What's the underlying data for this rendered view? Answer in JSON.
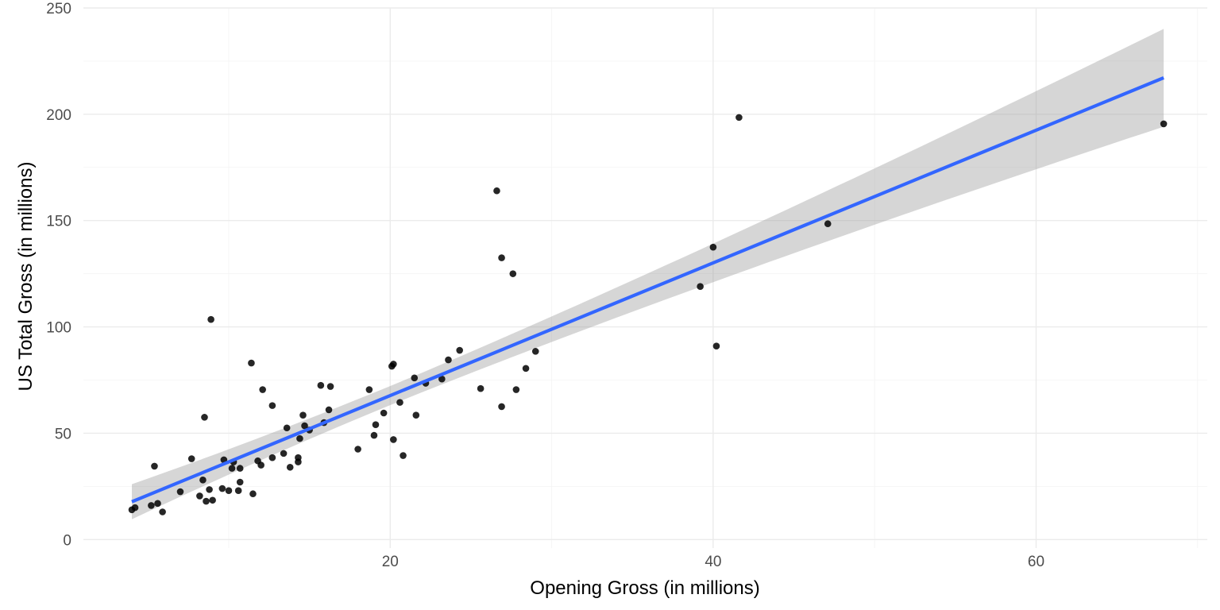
{
  "chart_data": {
    "type": "scatter",
    "xlabel": "Opening Gross (in millions)",
    "ylabel": "US Total Gross (in millions)",
    "xlim": [
      1.0,
      70.6
    ],
    "ylim": [
      -4,
      250
    ],
    "x_ticks": [
      20,
      40,
      60
    ],
    "x_tick_labels": [
      "20",
      "40",
      "60"
    ],
    "y_ticks": [
      0,
      50,
      100,
      150,
      200,
      250
    ],
    "y_tick_labels": [
      "0",
      "50",
      "100",
      "150",
      "200",
      "250"
    ],
    "grid": true,
    "legend": "none",
    "colors": {
      "points": "#000000",
      "fit_line": "#3366ff",
      "confidence_band": "#999999"
    },
    "points": [
      {
        "x": 4.0,
        "y": 14
      },
      {
        "x": 4.2,
        "y": 15
      },
      {
        "x": 5.2,
        "y": 16
      },
      {
        "x": 5.4,
        "y": 34.5
      },
      {
        "x": 5.6,
        "y": 17
      },
      {
        "x": 5.9,
        "y": 13
      },
      {
        "x": 7.0,
        "y": 22.5
      },
      {
        "x": 7.7,
        "y": 38
      },
      {
        "x": 8.2,
        "y": 20.5
      },
      {
        "x": 8.4,
        "y": 28
      },
      {
        "x": 8.5,
        "y": 57.5
      },
      {
        "x": 8.6,
        "y": 18
      },
      {
        "x": 8.8,
        "y": 23.5
      },
      {
        "x": 8.9,
        "y": 103.5
      },
      {
        "x": 9.0,
        "y": 18.5
      },
      {
        "x": 9.6,
        "y": 24
      },
      {
        "x": 9.7,
        "y": 37.5
      },
      {
        "x": 10.0,
        "y": 23
      },
      {
        "x": 10.2,
        "y": 33.5
      },
      {
        "x": 10.3,
        "y": 36.5
      },
      {
        "x": 10.6,
        "y": 23
      },
      {
        "x": 10.7,
        "y": 33.5
      },
      {
        "x": 10.7,
        "y": 27
      },
      {
        "x": 11.4,
        "y": 83
      },
      {
        "x": 11.5,
        "y": 21.5
      },
      {
        "x": 11.8,
        "y": 37
      },
      {
        "x": 12.0,
        "y": 35
      },
      {
        "x": 12.1,
        "y": 70.5
      },
      {
        "x": 12.7,
        "y": 38.5
      },
      {
        "x": 12.7,
        "y": 63
      },
      {
        "x": 13.4,
        "y": 40.5
      },
      {
        "x": 13.6,
        "y": 52.5
      },
      {
        "x": 13.8,
        "y": 34
      },
      {
        "x": 14.3,
        "y": 36.5
      },
      {
        "x": 14.3,
        "y": 38.5
      },
      {
        "x": 14.4,
        "y": 47.5
      },
      {
        "x": 14.6,
        "y": 58.5
      },
      {
        "x": 14.7,
        "y": 53.5
      },
      {
        "x": 15.0,
        "y": 51.5
      },
      {
        "x": 15.7,
        "y": 72.5
      },
      {
        "x": 15.9,
        "y": 55
      },
      {
        "x": 16.2,
        "y": 61
      },
      {
        "x": 16.3,
        "y": 72
      },
      {
        "x": 18.0,
        "y": 42.5
      },
      {
        "x": 18.7,
        "y": 70.5
      },
      {
        "x": 19.0,
        "y": 49
      },
      {
        "x": 19.1,
        "y": 54
      },
      {
        "x": 19.6,
        "y": 59.5
      },
      {
        "x": 20.1,
        "y": 81.5
      },
      {
        "x": 20.2,
        "y": 82.5
      },
      {
        "x": 20.2,
        "y": 47
      },
      {
        "x": 20.6,
        "y": 64.5
      },
      {
        "x": 20.8,
        "y": 39.5
      },
      {
        "x": 21.5,
        "y": 76
      },
      {
        "x": 21.6,
        "y": 58.5
      },
      {
        "x": 22.2,
        "y": 73.5
      },
      {
        "x": 23.2,
        "y": 75.5
      },
      {
        "x": 23.6,
        "y": 84.5
      },
      {
        "x": 24.3,
        "y": 89
      },
      {
        "x": 25.6,
        "y": 71
      },
      {
        "x": 26.6,
        "y": 164
      },
      {
        "x": 26.9,
        "y": 132.5
      },
      {
        "x": 26.9,
        "y": 62.5
      },
      {
        "x": 27.6,
        "y": 125
      },
      {
        "x": 27.8,
        "y": 70.5
      },
      {
        "x": 28.4,
        "y": 80.5
      },
      {
        "x": 29.0,
        "y": 88.5
      },
      {
        "x": 39.2,
        "y": 119
      },
      {
        "x": 40.0,
        "y": 137.5
      },
      {
        "x": 40.2,
        "y": 91
      },
      {
        "x": 41.6,
        "y": 198.5
      },
      {
        "x": 47.1,
        "y": 148.5
      },
      {
        "x": 67.9,
        "y": 195.5
      }
    ],
    "fit": {
      "method": "linear",
      "x_range": [
        4.0,
        67.9
      ],
      "intercept": 5.3,
      "slope": 3.12,
      "band_start": [
        9.0,
        25.5
      ],
      "band_end": [
        194.0,
        240.0
      ]
    }
  }
}
